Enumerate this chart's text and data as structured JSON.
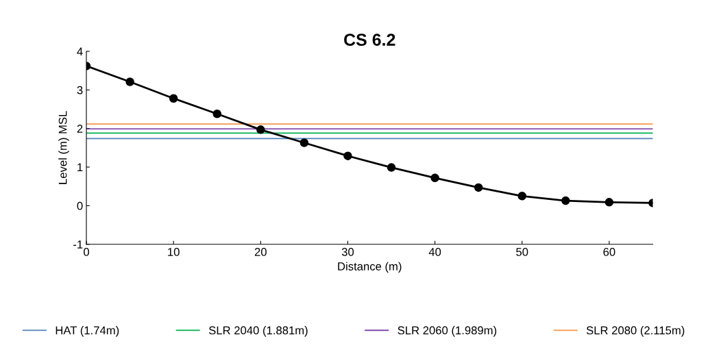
{
  "chart_data": {
    "type": "line",
    "title": "CS 6.2",
    "xlabel": "Distance (m)",
    "ylabel": "Level (m) MSL",
    "x": [
      0,
      5,
      10,
      15,
      20,
      25,
      30,
      35,
      40,
      45,
      50,
      55,
      60,
      65
    ],
    "series": [
      {
        "color": "#000000",
        "values": [
          3.62,
          3.21,
          2.78,
          2.38,
          1.97,
          1.63,
          1.29,
          0.99,
          0.72,
          0.47,
          0.25,
          0.13,
          0.09,
          0.07
        ]
      }
    ],
    "marker": "circle",
    "line_style": "solid",
    "xlim": [
      0,
      65
    ],
    "xticks": [
      0,
      10,
      20,
      30,
      40,
      50,
      60
    ],
    "ylim": [
      -1,
      4
    ],
    "yticks": [
      -1,
      0,
      1,
      2,
      3,
      4
    ],
    "ref_lines": [
      {
        "axis": "y",
        "value": 1.74,
        "label": "HAT (1.74m)",
        "color": "#4f81bd"
      },
      {
        "axis": "y",
        "value": 1.881,
        "label": "SLR 2040 (1.881m)",
        "color": "#00b050"
      },
      {
        "axis": "y",
        "value": 1.989,
        "label": "SLR 2060 (1.989m)",
        "color": "#7030a0"
      },
      {
        "axis": "y",
        "value": 2.115,
        "label": "SLR 2080 (2.115m)",
        "color": "#f79646"
      }
    ],
    "legend": "bottom",
    "grid": false
  }
}
